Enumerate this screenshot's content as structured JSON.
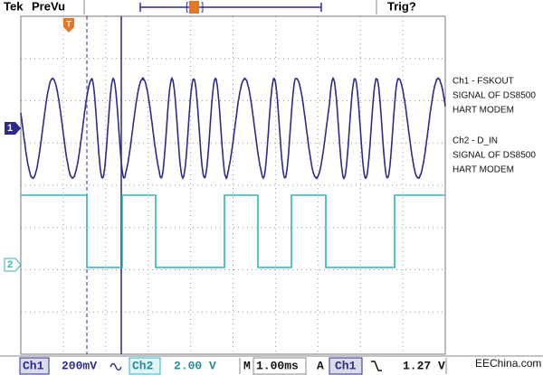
{
  "header": {
    "brand": "Tek",
    "mode": "PreVu",
    "trigger_status": "Trig?"
  },
  "markers": {
    "trigger": "T",
    "ch1": "1",
    "ch2": "2"
  },
  "annotations": {
    "ch1": [
      "Ch1 - FSKOUT",
      "SIGNAL OF DS8500",
      "HART MODEM"
    ],
    "ch2": [
      "Ch2 - D_IN",
      "SIGNAL OF DS8500",
      "HART MODEM"
    ]
  },
  "status_bar": {
    "ch1_label": "Ch1",
    "ch1_scale": "200mV",
    "ch2_label": "Ch2",
    "ch2_scale": "2.00 V",
    "time_label": "M",
    "time_scale": "1.00ms",
    "trigger_label": "A",
    "trigger_source": "Ch1",
    "trigger_level": "1.27 V"
  },
  "watermark": "EEChina.com"
}
